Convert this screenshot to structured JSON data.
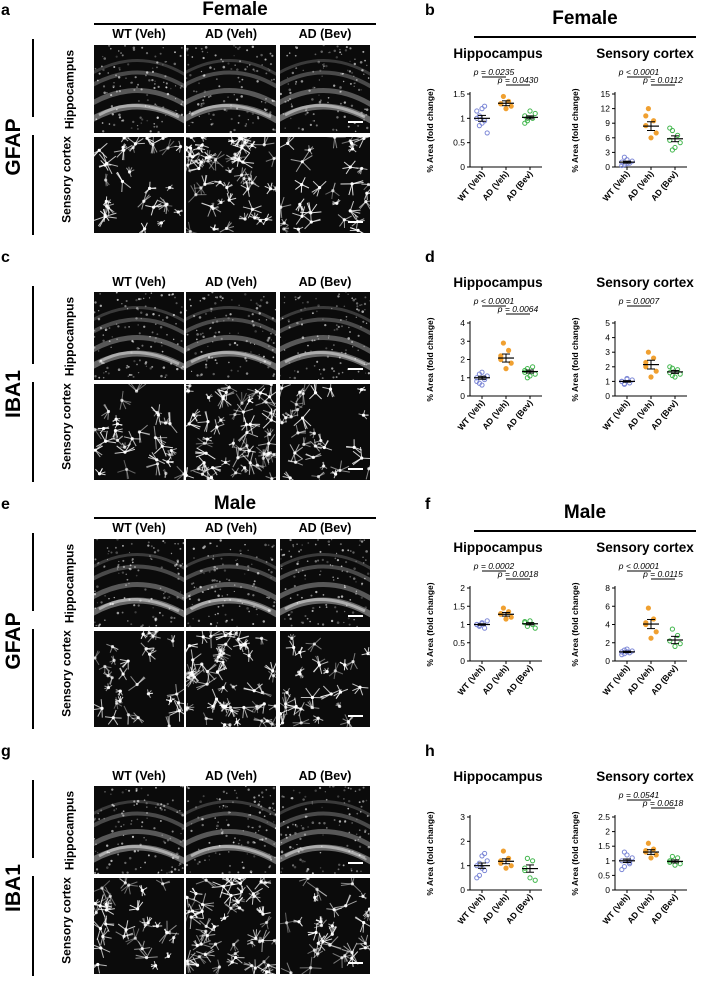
{
  "panels": [
    {
      "letter": "a",
      "sex": "Female",
      "stain": "GFAP",
      "rows": [
        "Hippocampus",
        "Sensory\ncortex"
      ]
    },
    {
      "letter": "c",
      "sex": "",
      "stain": "IBA1",
      "rows": [
        "Hippocampus",
        "Sensory\ncortex"
      ]
    },
    {
      "letter": "e",
      "sex": "Male",
      "stain": "GFAP",
      "rows": [
        "Hippocampus",
        "Sensory\ncortex"
      ]
    },
    {
      "letter": "g",
      "sex": "",
      "stain": "IBA1",
      "rows": [
        "Hippocampus",
        "Sensory\ncortex"
      ]
    }
  ],
  "image_columns": [
    "WT (Veh)",
    "AD (Veh)",
    "AD (Bev)"
  ],
  "chart_panels": [
    {
      "letter": "b",
      "sex": "Female"
    },
    {
      "letter": "d",
      "sex": ""
    },
    {
      "letter": "f",
      "sex": "Male"
    },
    {
      "letter": "h",
      "sex": ""
    }
  ],
  "colors": {
    "WT (Veh)": "#7b86d6",
    "AD (Veh)": "#f0a030",
    "AD (Bev)": "#3fb54a"
  },
  "chart_data": [
    {
      "type": "scatter",
      "panel": "b",
      "title": "Hippocampus",
      "ylabel": "% Area (fold change)",
      "categories": [
        "WT (Veh)",
        "AD (Veh)",
        "AD (Bev)"
      ],
      "ylim": [
        0,
        1.5
      ],
      "yticks": [
        0,
        0.5,
        1.0,
        1.5
      ],
      "values": [
        [
          1.0,
          0.85,
          1.2,
          0.95,
          0.7,
          1.15,
          1.05,
          0.9,
          1.25
        ],
        [
          1.3,
          1.45,
          1.2,
          1.35,
          1.25,
          1.3
        ],
        [
          1.05,
          0.95,
          1.15,
          1.0,
          1.1,
          0.9,
          1.0
        ]
      ],
      "means": [
        1.0,
        1.31,
        1.02
      ],
      "sem": [
        0.06,
        0.05,
        0.03
      ],
      "comparisons": [
        {
          "from": 0,
          "to": 1,
          "text": "p = 0.0235"
        },
        {
          "from": 1,
          "to": 2,
          "text": "p = 0.0430"
        }
      ]
    },
    {
      "type": "scatter",
      "panel": "b",
      "title": "Sensory cortex",
      "ylabel": "% Area (fold change)",
      "categories": [
        "WT (Veh)",
        "AD (Veh)",
        "AD (Bev)"
      ],
      "ylim": [
        0,
        15
      ],
      "yticks": [
        0,
        3,
        6,
        9,
        12,
        15
      ],
      "values": [
        [
          1.0,
          0.5,
          1.5,
          0.8,
          1.2,
          0.3,
          2.0,
          0.7
        ],
        [
          8.5,
          12.0,
          6.0,
          9.5,
          7.0,
          10.5
        ],
        [
          5.5,
          7.5,
          4.0,
          6.5,
          5.0,
          8.0,
          3.5
        ]
      ],
      "means": [
        1.0,
        8.4,
        5.8
      ],
      "sem": [
        0.2,
        0.9,
        0.6
      ],
      "comparisons": [
        {
          "from": 0,
          "to": 1,
          "text": "p < 0.0001"
        },
        {
          "from": 1,
          "to": 2,
          "text": "p = 0.0112"
        }
      ]
    },
    {
      "type": "scatter",
      "panel": "d",
      "title": "Hippocampus",
      "ylabel": "% Area (fold change)",
      "categories": [
        "WT (Veh)",
        "AD (Veh)",
        "AD (Bev)"
      ],
      "ylim": [
        0,
        4
      ],
      "yticks": [
        0,
        1,
        2,
        3,
        4
      ],
      "values": [
        [
          1.0,
          0.7,
          1.3,
          0.9,
          1.1,
          0.8,
          1.2,
          0.6,
          1.0
        ],
        [
          2.0,
          2.9,
          1.5,
          2.5,
          1.8,
          2.2
        ],
        [
          1.3,
          1.5,
          1.1,
          1.6,
          1.2,
          1.4,
          1.0
        ]
      ],
      "means": [
        1.0,
        2.08,
        1.34
      ],
      "sem": [
        0.08,
        0.22,
        0.08
      ],
      "comparisons": [
        {
          "from": 0,
          "to": 1,
          "text": "p < 0.0001"
        },
        {
          "from": 1,
          "to": 2,
          "text": "p = 0.0064"
        }
      ]
    },
    {
      "type": "scatter",
      "panel": "d",
      "title": "Sensory cortex",
      "ylabel": "% Area (fold change)",
      "categories": [
        "WT (Veh)",
        "AD (Veh)",
        "AD (Bev)"
      ],
      "ylim": [
        0,
        5
      ],
      "yticks": [
        0,
        1,
        2,
        3,
        4,
        5
      ],
      "values": [
        [
          1.0,
          0.8,
          1.2,
          0.9,
          1.1,
          1.0,
          0.85,
          1.15
        ],
        [
          2.0,
          3.0,
          1.3,
          2.6,
          1.7,
          2.3
        ],
        [
          1.6,
          1.9,
          1.3,
          1.8,
          1.5,
          2.0,
          1.4
        ]
      ],
      "means": [
        1.0,
        2.15,
        1.65
      ],
      "sem": [
        0.05,
        0.3,
        0.1
      ],
      "comparisons": [
        {
          "from": 0,
          "to": 1,
          "text": "p = 0.0007"
        }
      ]
    },
    {
      "type": "scatter",
      "panel": "f",
      "title": "Hippocampus",
      "ylabel": "% Area (fold change)",
      "categories": [
        "WT (Veh)",
        "AD (Veh)",
        "AD (Bev)"
      ],
      "ylim": [
        0,
        2.0
      ],
      "yticks": [
        0,
        0.5,
        1.0,
        1.5,
        2.0
      ],
      "values": [
        [
          1.0,
          0.95,
          1.05,
          0.9,
          1.1,
          1.0,
          0.98,
          1.02
        ],
        [
          1.3,
          1.45,
          1.15,
          1.35,
          1.2,
          1.28
        ],
        [
          1.05,
          0.95,
          1.1,
          1.0,
          0.9,
          1.08
        ]
      ],
      "means": [
        1.0,
        1.28,
        1.02
      ],
      "sem": [
        0.02,
        0.05,
        0.03
      ],
      "comparisons": [
        {
          "from": 0,
          "to": 1,
          "text": "p = 0.0002"
        },
        {
          "from": 1,
          "to": 2,
          "text": "p = 0.0018"
        }
      ]
    },
    {
      "type": "scatter",
      "panel": "f",
      "title": "Sensory cortex",
      "ylabel": "% Area (fold change)",
      "categories": [
        "WT (Veh)",
        "AD (Veh)",
        "AD (Bev)"
      ],
      "ylim": [
        0,
        8
      ],
      "yticks": [
        0,
        2,
        4,
        6,
        8
      ],
      "values": [
        [
          1.0,
          0.8,
          1.3,
          0.9,
          1.1,
          0.7,
          1.2,
          1.0
        ],
        [
          4.0,
          5.8,
          2.5,
          4.6,
          3.2,
          4.2
        ],
        [
          2.2,
          3.5,
          1.6,
          2.8,
          1.9
        ]
      ],
      "means": [
        1.0,
        4.05,
        2.3
      ],
      "sem": [
        0.08,
        0.5,
        0.4
      ],
      "comparisons": [
        {
          "from": 0,
          "to": 1,
          "text": "p < 0.0001"
        },
        {
          "from": 1,
          "to": 2,
          "text": "p = 0.0115"
        }
      ]
    },
    {
      "type": "scatter",
      "panel": "h",
      "title": "Hippocampus",
      "ylabel": "% Area (fold change)",
      "categories": [
        "WT (Veh)",
        "AD (Veh)",
        "AD (Bev)"
      ],
      "ylim": [
        0,
        3
      ],
      "yticks": [
        0,
        1,
        2,
        3
      ],
      "values": [
        [
          1.0,
          0.6,
          1.4,
          0.8,
          1.2,
          0.5,
          1.1,
          0.9,
          1.5
        ],
        [
          1.2,
          1.6,
          0.9,
          1.3,
          1.0,
          1.1
        ],
        [
          0.9,
          1.3,
          0.5,
          1.2,
          0.4,
          0.8
        ]
      ],
      "means": [
        1.0,
        1.18,
        0.88
      ],
      "sem": [
        0.11,
        0.1,
        0.15
      ],
      "comparisons": []
    },
    {
      "type": "scatter",
      "panel": "h",
      "title": "Sensory cortex",
      "ylabel": "% Area (fold change)",
      "categories": [
        "WT (Veh)",
        "AD (Veh)",
        "AD (Bev)"
      ],
      "ylim": [
        0,
        2.5
      ],
      "yticks": [
        0,
        0.5,
        1.0,
        1.5,
        2.0,
        2.5
      ],
      "values": [
        [
          1.0,
          0.8,
          1.2,
          0.9,
          1.1,
          0.7,
          1.3,
          1.0,
          0.95
        ],
        [
          1.3,
          1.6,
          1.1,
          1.4,
          1.2,
          1.35
        ],
        [
          1.0,
          1.15,
          0.85,
          1.1,
          0.9,
          0.95
        ]
      ],
      "means": [
        1.0,
        1.3,
        0.98
      ],
      "sem": [
        0.06,
        0.08,
        0.05
      ],
      "comparisons": [
        {
          "from": 0,
          "to": 1,
          "text": "p = 0.0541"
        },
        {
          "from": 1,
          "to": 2,
          "text": "p = 0.0618"
        }
      ]
    }
  ]
}
